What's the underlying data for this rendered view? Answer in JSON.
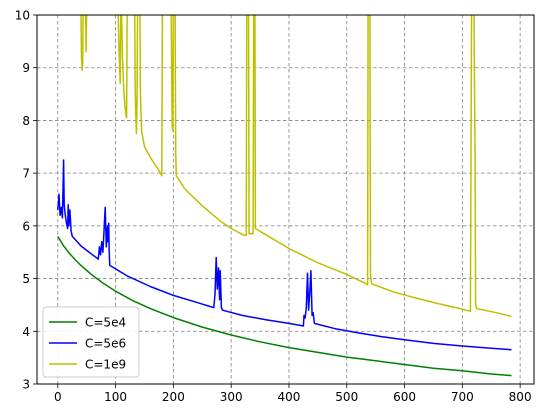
{
  "chart_data": {
    "type": "line",
    "title": "",
    "xlabel": "",
    "ylabel": "",
    "xlim": [
      -36,
      824
    ],
    "ylim": [
      3,
      10
    ],
    "x_ticks": [
      0,
      100,
      200,
      300,
      400,
      500,
      600,
      700,
      800
    ],
    "y_ticks": [
      3,
      4,
      5,
      6,
      7,
      8,
      9,
      10
    ],
    "grid": true,
    "grid_style": "dashed",
    "legend_position": "lower-left",
    "series": [
      {
        "name": "C=5e4",
        "color": "#008000",
        "points": [
          [
            0,
            5.8
          ],
          [
            10,
            5.62
          ],
          [
            20,
            5.48
          ],
          [
            30,
            5.36
          ],
          [
            40,
            5.25
          ],
          [
            60,
            5.06
          ],
          [
            80,
            4.9
          ],
          [
            100,
            4.76
          ],
          [
            130,
            4.58
          ],
          [
            160,
            4.43
          ],
          [
            200,
            4.26
          ],
          [
            250,
            4.08
          ],
          [
            300,
            3.93
          ],
          [
            350,
            3.8
          ],
          [
            400,
            3.69
          ],
          [
            450,
            3.6
          ],
          [
            500,
            3.51
          ],
          [
            550,
            3.44
          ],
          [
            600,
            3.37
          ],
          [
            650,
            3.3
          ],
          [
            700,
            3.25
          ],
          [
            750,
            3.19
          ],
          [
            785,
            3.16
          ]
        ]
      },
      {
        "name": "C=5e6",
        "color": "#0000ff",
        "points": [
          [
            0,
            6.3
          ],
          [
            2,
            6.6
          ],
          [
            4,
            6.2
          ],
          [
            6,
            6.35
          ],
          [
            8,
            6.15
          ],
          [
            10,
            7.25
          ],
          [
            11,
            6.4
          ],
          [
            13,
            6.2
          ],
          [
            15,
            6.05
          ],
          [
            17,
            5.95
          ],
          [
            18,
            6.4
          ],
          [
            19,
            6.0
          ],
          [
            21,
            6.3
          ],
          [
            22,
            6.1
          ],
          [
            23,
            5.9
          ],
          [
            25,
            5.8
          ],
          [
            40,
            5.62
          ],
          [
            60,
            5.45
          ],
          [
            70,
            5.37
          ],
          [
            72,
            5.6
          ],
          [
            74,
            5.45
          ],
          [
            76,
            5.7
          ],
          [
            78,
            5.5
          ],
          [
            80,
            5.9
          ],
          [
            82,
            6.35
          ],
          [
            84,
            5.6
          ],
          [
            86,
            6.0
          ],
          [
            87,
            5.7
          ],
          [
            88,
            6.05
          ],
          [
            89,
            5.5
          ],
          [
            90,
            5.25
          ],
          [
            120,
            5.05
          ],
          [
            160,
            4.85
          ],
          [
            200,
            4.68
          ],
          [
            240,
            4.55
          ],
          [
            270,
            4.45
          ],
          [
            272,
            4.7
          ],
          [
            274,
            5.4
          ],
          [
            276,
            4.8
          ],
          [
            278,
            5.2
          ],
          [
            280,
            4.6
          ],
          [
            281,
            5.15
          ],
          [
            283,
            4.45
          ],
          [
            285,
            4.4
          ],
          [
            320,
            4.3
          ],
          [
            360,
            4.22
          ],
          [
            400,
            4.15
          ],
          [
            425,
            4.1
          ],
          [
            426,
            4.3
          ],
          [
            428,
            4.25
          ],
          [
            430,
            4.45
          ],
          [
            432,
            5.1
          ],
          [
            434,
            4.4
          ],
          [
            436,
            4.75
          ],
          [
            438,
            5.15
          ],
          [
            440,
            4.3
          ],
          [
            442,
            4.35
          ],
          [
            444,
            4.15
          ],
          [
            480,
            4.05
          ],
          [
            520,
            3.97
          ],
          [
            560,
            3.9
          ],
          [
            600,
            3.84
          ],
          [
            650,
            3.77
          ],
          [
            700,
            3.72
          ],
          [
            750,
            3.68
          ],
          [
            785,
            3.65
          ]
        ]
      },
      {
        "name": "C=1e9",
        "color": "#bfbf00",
        "points": [
          [
            40,
            10.2
          ],
          [
            41,
            9.2
          ],
          [
            42,
            8.95
          ],
          [
            43,
            9.1
          ],
          [
            44,
            10.2
          ],
          [
            48,
            10.2
          ],
          [
            49,
            9.3
          ],
          [
            50,
            10.2
          ],
          [
            104,
            10.2
          ],
          [
            106,
            9.3
          ],
          [
            108,
            8.7
          ],
          [
            109,
            10.2
          ],
          [
            110,
            10.2
          ],
          [
            112,
            9.2
          ],
          [
            114,
            8.6
          ],
          [
            116,
            8.3
          ],
          [
            118,
            8.1
          ],
          [
            119,
            8.05
          ],
          [
            120,
            10.2
          ],
          [
            133,
            10.2
          ],
          [
            134,
            8.6
          ],
          [
            135,
            8.1
          ],
          [
            136,
            7.75
          ],
          [
            137,
            8.3
          ],
          [
            138,
            10.2
          ],
          [
            142,
            10.2
          ],
          [
            143,
            8.5
          ],
          [
            145,
            7.8
          ],
          [
            150,
            7.5
          ],
          [
            160,
            7.3
          ],
          [
            175,
            7.05
          ],
          [
            180,
            6.95
          ],
          [
            181,
            10.2
          ],
          [
            196,
            10.2
          ],
          [
            198,
            7.9
          ],
          [
            199,
            7.8
          ],
          [
            200,
            10.2
          ],
          [
            203,
            10.2
          ],
          [
            204,
            7.4
          ],
          [
            205,
            6.95
          ],
          [
            220,
            6.7
          ],
          [
            250,
            6.38
          ],
          [
            280,
            6.1
          ],
          [
            300,
            5.95
          ],
          [
            322,
            5.82
          ],
          [
            326,
            5.82
          ],
          [
            327,
            10.2
          ],
          [
            330,
            10.2
          ],
          [
            331,
            5.85
          ],
          [
            338,
            5.85
          ],
          [
            339,
            10.2
          ],
          [
            341,
            10.2
          ],
          [
            342,
            5.95
          ],
          [
            360,
            5.83
          ],
          [
            400,
            5.57
          ],
          [
            450,
            5.3
          ],
          [
            500,
            5.08
          ],
          [
            530,
            4.92
          ],
          [
            536,
            4.88
          ],
          [
            537,
            10.2
          ],
          [
            540,
            10.2
          ],
          [
            541,
            5.05
          ],
          [
            543,
            4.9
          ],
          [
            580,
            4.75
          ],
          [
            620,
            4.63
          ],
          [
            660,
            4.52
          ],
          [
            700,
            4.42
          ],
          [
            714,
            4.38
          ],
          [
            716,
            10.2
          ],
          [
            720,
            10.2
          ],
          [
            722,
            7.2
          ],
          [
            723,
            4.5
          ],
          [
            725,
            4.43
          ],
          [
            760,
            4.35
          ],
          [
            785,
            4.28
          ]
        ]
      }
    ]
  }
}
